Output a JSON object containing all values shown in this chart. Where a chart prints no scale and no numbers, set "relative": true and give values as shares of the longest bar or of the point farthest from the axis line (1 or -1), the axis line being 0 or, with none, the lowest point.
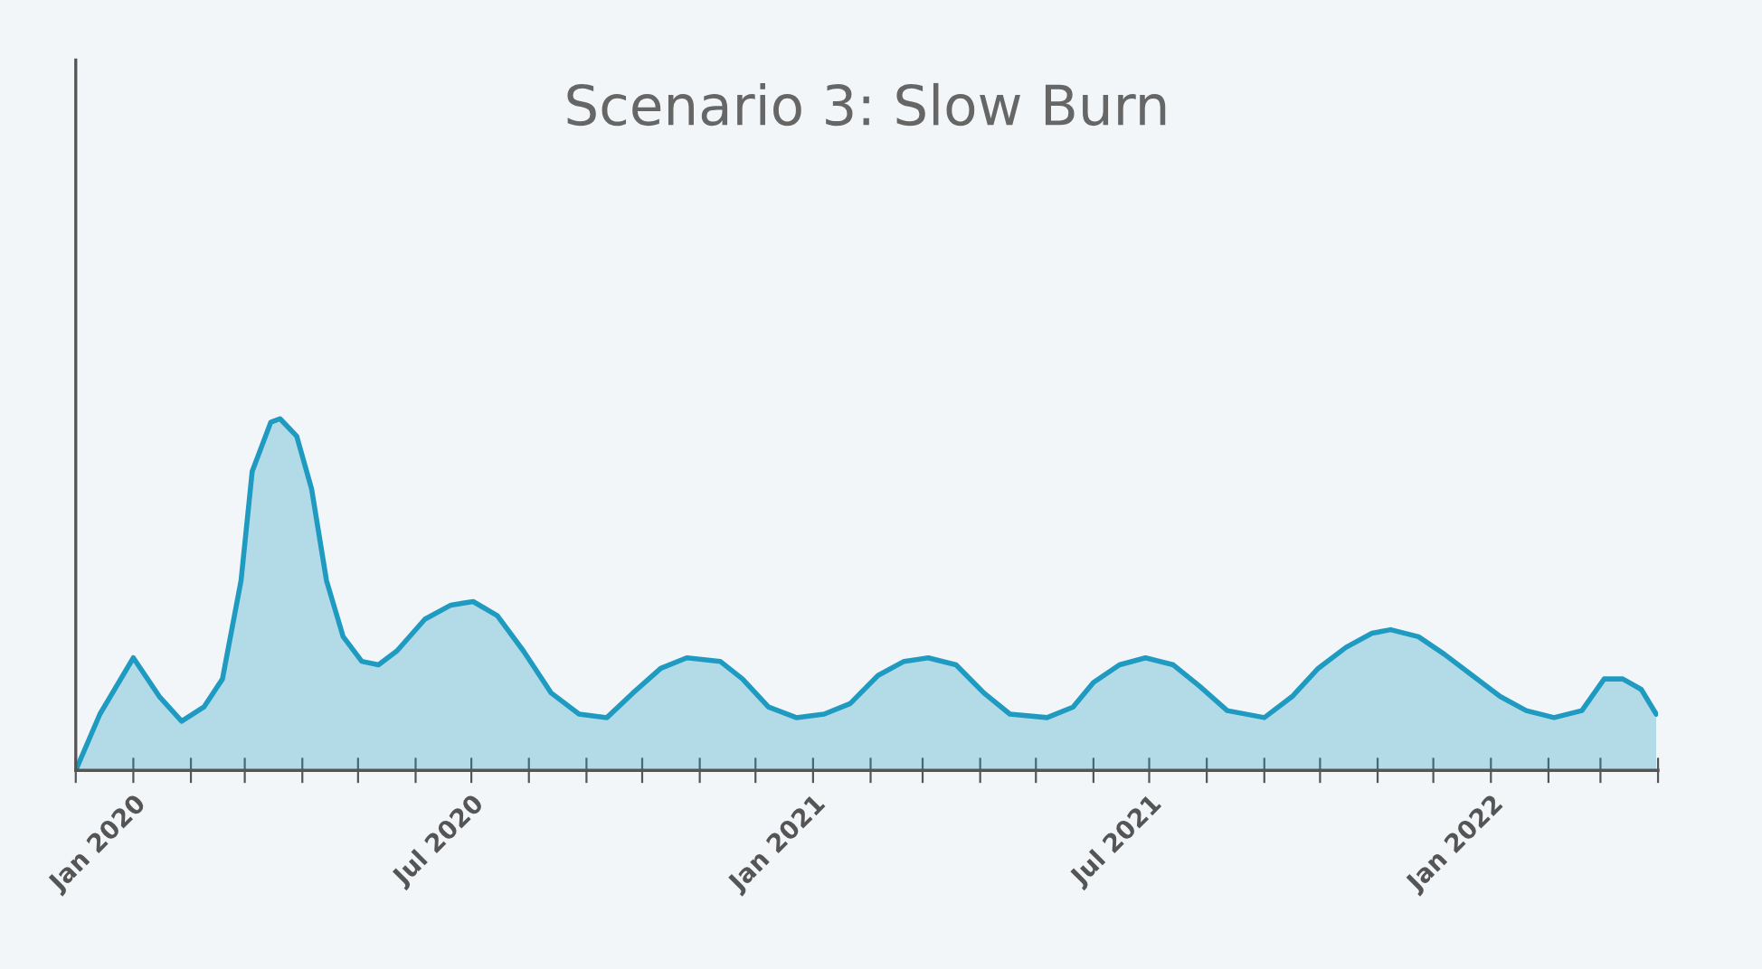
{
  "chart_data": {
    "type": "area",
    "title": "Scenario 3: Slow Burn",
    "relative": true,
    "grid": false,
    "legend": false,
    "tick_labels": "x",
    "xlim": [
      "2019-12-01",
      "2022-04-01"
    ],
    "xticks": [
      {
        "value": "2019-12",
        "label": null
      },
      {
        "value": "2020-01",
        "label": "Jan 2020"
      },
      {
        "value": "2020-02",
        "label": null
      },
      {
        "value": "2020-03",
        "label": null
      },
      {
        "value": "2020-04",
        "label": null
      },
      {
        "value": "2020-05",
        "label": null
      },
      {
        "value": "2020-06",
        "label": null
      },
      {
        "value": "2020-07",
        "label": "Jul 2020"
      },
      {
        "value": "2020-08",
        "label": null
      },
      {
        "value": "2020-09",
        "label": null
      },
      {
        "value": "2020-10",
        "label": null
      },
      {
        "value": "2020-11",
        "label": null
      },
      {
        "value": "2020-12",
        "label": null
      },
      {
        "value": "2021-01",
        "label": "Jan 2021"
      },
      {
        "value": "2021-02",
        "label": null
      },
      {
        "value": "2021-03",
        "label": null
      },
      {
        "value": "2021-04",
        "label": null
      },
      {
        "value": "2021-05",
        "label": null
      },
      {
        "value": "2021-06",
        "label": null
      },
      {
        "value": "2021-07",
        "label": "Jul 2021"
      },
      {
        "value": "2021-08",
        "label": null
      },
      {
        "value": "2021-09",
        "label": null
      },
      {
        "value": "2021-10",
        "label": null
      },
      {
        "value": "2021-11",
        "label": null
      },
      {
        "value": "2021-12",
        "label": null
      },
      {
        "value": "2022-01",
        "label": "Jan 2022"
      },
      {
        "value": "2022-02",
        "label": null
      },
      {
        "value": "2022-03",
        "label": null
      },
      {
        "value": "2022-04",
        "label": null
      }
    ],
    "x": [
      "2019-12-01",
      "2019-12-14",
      "2020-01-01",
      "2020-01-15",
      "2020-01-27",
      "2020-02-08",
      "2020-02-18",
      "2020-02-28",
      "2020-03-05",
      "2020-03-15",
      "2020-03-20",
      "2020-03-29",
      "2020-04-06",
      "2020-04-14",
      "2020-04-23",
      "2020-05-03",
      "2020-05-12",
      "2020-05-22",
      "2020-06-06",
      "2020-06-20",
      "2020-07-02",
      "2020-07-15",
      "2020-07-29",
      "2020-08-13",
      "2020-08-28",
      "2020-09-12",
      "2020-09-26",
      "2020-10-11",
      "2020-10-25",
      "2020-11-12",
      "2020-11-24",
      "2020-12-08",
      "2020-12-23",
      "2021-01-07",
      "2021-01-21",
      "2021-02-05",
      "2021-02-19",
      "2021-03-04",
      "2021-03-19",
      "2021-04-03",
      "2021-04-17",
      "2021-05-07",
      "2021-05-21",
      "2021-06-01",
      "2021-06-15",
      "2021-06-29",
      "2021-07-14",
      "2021-07-28",
      "2021-08-12",
      "2021-09-01",
      "2021-09-16",
      "2021-09-30",
      "2021-10-15",
      "2021-10-29",
      "2021-11-08",
      "2021-11-23",
      "2021-12-07",
      "2021-12-22",
      "2022-01-06",
      "2022-01-20",
      "2022-02-04",
      "2022-02-19",
      "2022-03-03",
      "2022-03-13",
      "2022-03-23",
      "2022-03-31"
    ],
    "series": [
      {
        "color": "#1f9ac0",
        "values": [
          0,
          0.16,
          0.32,
          0.21,
          0.14,
          0.18,
          0.26,
          0.54,
          0.85,
          0.99,
          1.0,
          0.95,
          0.8,
          0.54,
          0.38,
          0.31,
          0.3,
          0.34,
          0.43,
          0.47,
          0.48,
          0.44,
          0.34,
          0.22,
          0.16,
          0.15,
          0.22,
          0.29,
          0.32,
          0.31,
          0.26,
          0.18,
          0.15,
          0.16,
          0.19,
          0.27,
          0.31,
          0.32,
          0.3,
          0.22,
          0.16,
          0.15,
          0.18,
          0.25,
          0.3,
          0.32,
          0.3,
          0.24,
          0.17,
          0.15,
          0.21,
          0.29,
          0.35,
          0.39,
          0.4,
          0.38,
          0.33,
          0.27,
          0.21,
          0.17,
          0.15,
          0.17,
          0.26,
          0.26,
          0.23,
          0.16
        ]
      }
    ]
  }
}
